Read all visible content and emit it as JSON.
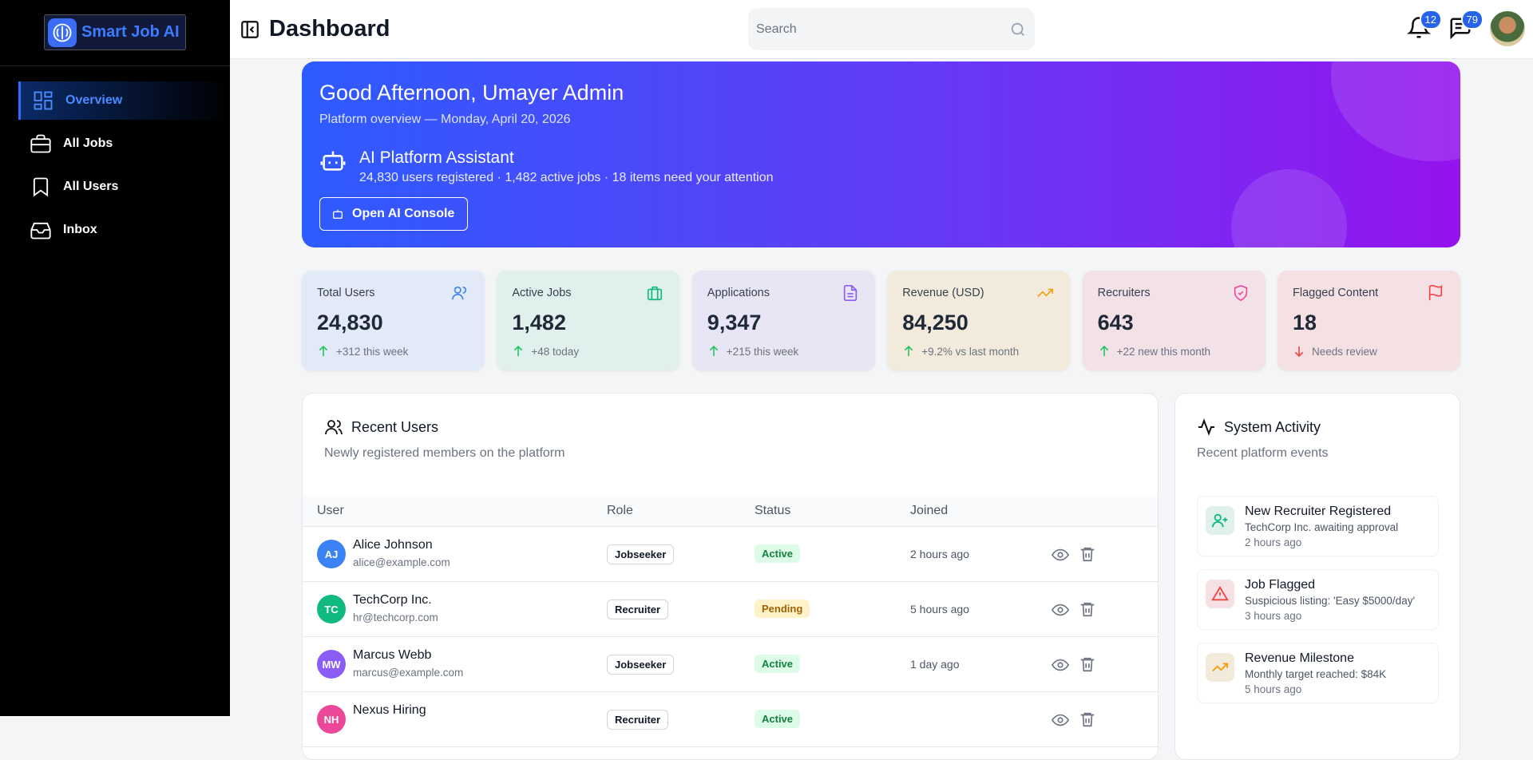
{
  "sidebar": {
    "brand": "Smart Job AI",
    "nav": [
      {
        "label": "Overview",
        "active": true
      },
      {
        "label": "All Jobs"
      },
      {
        "label": "All Users"
      },
      {
        "label": "Inbox"
      }
    ]
  },
  "header": {
    "title": "Dashboard",
    "search_placeholder": "Search",
    "notifications": "12",
    "messages": "79"
  },
  "banner": {
    "greeting": "Good Afternoon, Umayer Admin",
    "subtitle": "Platform overview — Monday, April 20, 2026",
    "assistant_title": "AI Platform Assistant",
    "assistant_text": "24,830 users registered · 1,482 active jobs · 18 items need your attention",
    "button": "Open AI Console"
  },
  "stats": [
    {
      "label": "Total Users",
      "value": "24,830",
      "change": "+312 this week",
      "trend": "up",
      "theme": "blue"
    },
    {
      "label": "Active Jobs",
      "value": "1,482",
      "change": "+48 today",
      "trend": "up",
      "theme": "green"
    },
    {
      "label": "Applications",
      "value": "9,347",
      "change": "+215 this week",
      "trend": "up",
      "theme": "purple"
    },
    {
      "label": "Revenue (USD)",
      "value": "84,250",
      "change": "+9.2% vs last month",
      "trend": "up",
      "theme": "amber"
    },
    {
      "label": "Recruiters",
      "value": "643",
      "change": "+22 new this month",
      "trend": "up",
      "theme": "pink"
    },
    {
      "label": "Flagged Content",
      "value": "18",
      "change": "Needs review",
      "trend": "down",
      "theme": "red"
    }
  ],
  "recent_users": {
    "title": "Recent Users",
    "subtitle": "Newly registered members on the platform",
    "columns": [
      "User",
      "Role",
      "Status",
      "Joined"
    ],
    "rows": [
      {
        "initials": "AJ",
        "name": "Alice Johnson",
        "email": "alice@example.com",
        "role": "Jobseeker",
        "status": "Active",
        "joined": "2 hours ago",
        "color": "#3b82f6"
      },
      {
        "initials": "TC",
        "name": "TechCorp Inc.",
        "email": "hr@techcorp.com",
        "role": "Recruiter",
        "status": "Pending",
        "joined": "5 hours ago",
        "color": "#10b981"
      },
      {
        "initials": "MW",
        "name": "Marcus Webb",
        "email": "marcus@example.com",
        "role": "Jobseeker",
        "status": "Active",
        "joined": "1 day ago",
        "color": "#8b5cf6"
      },
      {
        "initials": "NH",
        "name": "Nexus Hiring",
        "role": "Recruiter",
        "status": "Active",
        "color": "#ec4899"
      }
    ]
  },
  "activity": {
    "title": "System Activity",
    "subtitle": "Recent platform events",
    "items": [
      {
        "title": "New Recruiter Registered",
        "detail": "TechCorp Inc. awaiting approval",
        "time": "2 hours ago",
        "theme": "green"
      },
      {
        "title": "Job Flagged",
        "detail": "Suspicious listing: 'Easy $5000/day'",
        "time": "3 hours ago",
        "theme": "red"
      },
      {
        "title": "Revenue Milestone",
        "detail": "Monthly target reached: $84K",
        "time": "5 hours ago",
        "theme": "amber"
      }
    ]
  }
}
